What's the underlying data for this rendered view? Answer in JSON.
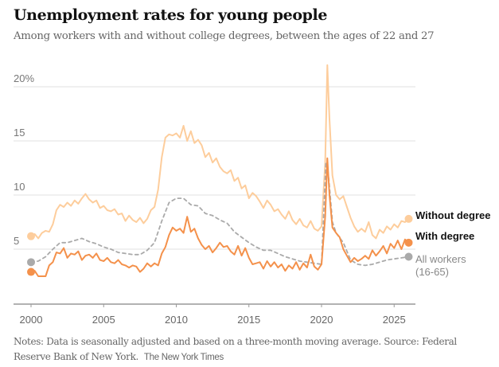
{
  "header": {
    "title": "Unemployment rates for young people",
    "subtitle": "Among workers with and without college degrees, between the ages of 22 and 27"
  },
  "footer": {
    "notes": "Notes: Data is seasonally adjusted and based on a three-month moving average.  Source: Federal Reserve Bank of New York.",
    "credit": "The New York Times"
  },
  "chart_data": {
    "type": "line",
    "title": "Unemployment rates for young people",
    "subtitle": "Among workers with and without college degrees, between the ages of 22 and 27",
    "xlabel": "",
    "ylabel": "",
    "xlim": [
      1999.2,
      2026.8
    ],
    "ylim": [
      0,
      22
    ],
    "grid": true,
    "yticks": [
      {
        "value": 5,
        "label": "5"
      },
      {
        "value": 10,
        "label": "10"
      },
      {
        "value": 15,
        "label": "15"
      },
      {
        "value": 20,
        "label": "20%"
      }
    ],
    "xticks": [
      {
        "value": 2000,
        "label": "2000"
      },
      {
        "value": 2005,
        "label": "2005"
      },
      {
        "value": 2010,
        "label": "2010"
      },
      {
        "value": 2015,
        "label": "2015"
      },
      {
        "value": 2020,
        "label": "2020"
      },
      {
        "value": 2025,
        "label": "2025"
      }
    ],
    "legend_placement": "right-end-labels",
    "series": [
      {
        "name": "Without degree",
        "label_lines": [
          "Without degree"
        ],
        "color": "#fdcd9c",
        "style": "solid",
        "label_bold": true,
        "points": [
          [
            2000.0,
            6.2
          ],
          [
            2000.25,
            6.4
          ],
          [
            2000.5,
            6.0
          ],
          [
            2000.75,
            6.5
          ],
          [
            2001.0,
            6.7
          ],
          [
            2001.25,
            6.6
          ],
          [
            2001.5,
            7.3
          ],
          [
            2001.75,
            8.6
          ],
          [
            2002.0,
            9.1
          ],
          [
            2002.25,
            8.9
          ],
          [
            2002.5,
            9.3
          ],
          [
            2002.75,
            9.0
          ],
          [
            2003.0,
            9.5
          ],
          [
            2003.25,
            9.2
          ],
          [
            2003.5,
            9.7
          ],
          [
            2003.75,
            10.1
          ],
          [
            2004.0,
            9.6
          ],
          [
            2004.25,
            9.3
          ],
          [
            2004.5,
            9.5
          ],
          [
            2004.75,
            8.8
          ],
          [
            2005.0,
            9.0
          ],
          [
            2005.25,
            8.6
          ],
          [
            2005.5,
            8.5
          ],
          [
            2005.75,
            8.7
          ],
          [
            2006.0,
            8.2
          ],
          [
            2006.25,
            8.3
          ],
          [
            2006.5,
            7.6
          ],
          [
            2006.75,
            8.1
          ],
          [
            2007.0,
            7.7
          ],
          [
            2007.25,
            7.5
          ],
          [
            2007.5,
            7.9
          ],
          [
            2007.75,
            7.4
          ],
          [
            2008.0,
            7.8
          ],
          [
            2008.25,
            8.6
          ],
          [
            2008.5,
            8.9
          ],
          [
            2008.75,
            10.5
          ],
          [
            2009.0,
            13.5
          ],
          [
            2009.25,
            15.3
          ],
          [
            2009.5,
            15.6
          ],
          [
            2009.75,
            15.5
          ],
          [
            2010.0,
            15.7
          ],
          [
            2010.25,
            15.3
          ],
          [
            2010.5,
            16.4
          ],
          [
            2010.75,
            15.0
          ],
          [
            2011.0,
            15.9
          ],
          [
            2011.25,
            14.8
          ],
          [
            2011.5,
            15.1
          ],
          [
            2011.75,
            14.6
          ],
          [
            2012.0,
            13.5
          ],
          [
            2012.25,
            13.9
          ],
          [
            2012.5,
            13.0
          ],
          [
            2012.75,
            13.4
          ],
          [
            2013.0,
            12.6
          ],
          [
            2013.25,
            12.2
          ],
          [
            2013.5,
            12.0
          ],
          [
            2013.75,
            12.3
          ],
          [
            2014.0,
            11.3
          ],
          [
            2014.25,
            11.6
          ],
          [
            2014.5,
            10.6
          ],
          [
            2014.75,
            10.9
          ],
          [
            2015.0,
            9.7
          ],
          [
            2015.25,
            10.2
          ],
          [
            2015.5,
            9.9
          ],
          [
            2015.75,
            9.4
          ],
          [
            2016.0,
            8.8
          ],
          [
            2016.25,
            9.5
          ],
          [
            2016.5,
            9.1
          ],
          [
            2016.75,
            8.5
          ],
          [
            2017.0,
            8.7
          ],
          [
            2017.25,
            8.2
          ],
          [
            2017.5,
            7.8
          ],
          [
            2017.75,
            8.5
          ],
          [
            2018.0,
            7.7
          ],
          [
            2018.25,
            7.3
          ],
          [
            2018.5,
            7.8
          ],
          [
            2018.75,
            7.2
          ],
          [
            2019.0,
            7.0
          ],
          [
            2019.25,
            7.6
          ],
          [
            2019.5,
            6.9
          ],
          [
            2019.75,
            6.7
          ],
          [
            2020.0,
            7.1
          ],
          [
            2020.25,
            13.0
          ],
          [
            2020.4,
            22.0
          ],
          [
            2020.55,
            17.0
          ],
          [
            2020.75,
            11.8
          ],
          [
            2021.0,
            10.0
          ],
          [
            2021.25,
            9.6
          ],
          [
            2021.5,
            9.9
          ],
          [
            2021.75,
            8.9
          ],
          [
            2022.0,
            7.9
          ],
          [
            2022.25,
            7.1
          ],
          [
            2022.5,
            6.6
          ],
          [
            2022.75,
            6.9
          ],
          [
            2023.0,
            6.6
          ],
          [
            2023.25,
            7.5
          ],
          [
            2023.5,
            6.3
          ],
          [
            2023.75,
            6.0
          ],
          [
            2024.0,
            6.8
          ],
          [
            2024.25,
            6.5
          ],
          [
            2024.5,
            7.1
          ],
          [
            2024.75,
            6.8
          ],
          [
            2025.0,
            7.3
          ],
          [
            2025.25,
            7.0
          ],
          [
            2025.5,
            7.6
          ],
          [
            2025.75,
            7.5
          ],
          [
            2026.0,
            7.8
          ]
        ]
      },
      {
        "name": "With degree",
        "label_lines": [
          "With degree"
        ],
        "color": "#f4914b",
        "style": "solid",
        "label_bold": true,
        "points": [
          [
            2000.0,
            2.9
          ],
          [
            2000.25,
            3.0
          ],
          [
            2000.5,
            2.5
          ],
          [
            2000.75,
            2.5
          ],
          [
            2001.0,
            2.5
          ],
          [
            2001.25,
            3.5
          ],
          [
            2001.5,
            3.8
          ],
          [
            2001.75,
            4.7
          ],
          [
            2002.0,
            4.6
          ],
          [
            2002.25,
            5.1
          ],
          [
            2002.5,
            4.2
          ],
          [
            2002.75,
            4.6
          ],
          [
            2003.0,
            4.5
          ],
          [
            2003.25,
            4.8
          ],
          [
            2003.5,
            4.0
          ],
          [
            2003.75,
            4.4
          ],
          [
            2004.0,
            4.5
          ],
          [
            2004.25,
            4.2
          ],
          [
            2004.5,
            4.6
          ],
          [
            2004.75,
            4.0
          ],
          [
            2005.0,
            3.9
          ],
          [
            2005.25,
            4.2
          ],
          [
            2005.5,
            3.8
          ],
          [
            2005.75,
            3.7
          ],
          [
            2006.0,
            4.0
          ],
          [
            2006.25,
            3.6
          ],
          [
            2006.5,
            3.5
          ],
          [
            2006.75,
            3.3
          ],
          [
            2007.0,
            3.5
          ],
          [
            2007.25,
            3.4
          ],
          [
            2007.5,
            2.9
          ],
          [
            2007.75,
            3.2
          ],
          [
            2008.0,
            3.7
          ],
          [
            2008.25,
            3.4
          ],
          [
            2008.5,
            3.7
          ],
          [
            2008.75,
            3.5
          ],
          [
            2009.0,
            4.6
          ],
          [
            2009.25,
            5.2
          ],
          [
            2009.5,
            6.3
          ],
          [
            2009.75,
            7.0
          ],
          [
            2010.0,
            6.7
          ],
          [
            2010.25,
            6.9
          ],
          [
            2010.5,
            6.5
          ],
          [
            2010.75,
            8.0
          ],
          [
            2011.0,
            6.6
          ],
          [
            2011.25,
            6.9
          ],
          [
            2011.5,
            6.0
          ],
          [
            2011.75,
            5.4
          ],
          [
            2012.0,
            5.0
          ],
          [
            2012.25,
            5.3
          ],
          [
            2012.5,
            4.7
          ],
          [
            2012.75,
            5.1
          ],
          [
            2013.0,
            5.6
          ],
          [
            2013.25,
            5.2
          ],
          [
            2013.5,
            5.3
          ],
          [
            2013.75,
            4.8
          ],
          [
            2014.0,
            4.5
          ],
          [
            2014.25,
            5.3
          ],
          [
            2014.5,
            4.4
          ],
          [
            2014.75,
            5.1
          ],
          [
            2015.0,
            4.2
          ],
          [
            2015.25,
            3.6
          ],
          [
            2015.5,
            3.7
          ],
          [
            2015.75,
            3.8
          ],
          [
            2016.0,
            3.2
          ],
          [
            2016.25,
            3.9
          ],
          [
            2016.5,
            3.4
          ],
          [
            2016.75,
            3.8
          ],
          [
            2017.0,
            3.3
          ],
          [
            2017.25,
            3.6
          ],
          [
            2017.5,
            3.0
          ],
          [
            2017.75,
            3.5
          ],
          [
            2018.0,
            3.2
          ],
          [
            2018.25,
            3.8
          ],
          [
            2018.5,
            3.1
          ],
          [
            2018.75,
            3.7
          ],
          [
            2019.0,
            3.3
          ],
          [
            2019.25,
            4.5
          ],
          [
            2019.5,
            3.4
          ],
          [
            2019.75,
            3.1
          ],
          [
            2020.0,
            3.6
          ],
          [
            2020.25,
            8.0
          ],
          [
            2020.4,
            13.4
          ],
          [
            2020.55,
            10.0
          ],
          [
            2020.75,
            7.0
          ],
          [
            2021.0,
            6.5
          ],
          [
            2021.25,
            6.1
          ],
          [
            2021.5,
            5.0
          ],
          [
            2021.75,
            4.4
          ],
          [
            2022.0,
            3.8
          ],
          [
            2022.25,
            4.2
          ],
          [
            2022.5,
            3.9
          ],
          [
            2022.75,
            4.1
          ],
          [
            2023.0,
            4.4
          ],
          [
            2023.25,
            4.1
          ],
          [
            2023.5,
            4.9
          ],
          [
            2023.75,
            4.4
          ],
          [
            2024.0,
            4.8
          ],
          [
            2024.25,
            5.3
          ],
          [
            2024.5,
            4.6
          ],
          [
            2024.75,
            5.5
          ],
          [
            2025.0,
            5.1
          ],
          [
            2025.25,
            5.8
          ],
          [
            2025.5,
            5.0
          ],
          [
            2025.75,
            5.9
          ],
          [
            2026.0,
            5.6
          ]
        ]
      },
      {
        "name": "All workers (16-65)",
        "label_lines": [
          "All workers",
          "(16-65)"
        ],
        "color": "#aaaaaa",
        "style": "dashed",
        "label_bold": false,
        "points": [
          [
            2000.0,
            3.8
          ],
          [
            2000.5,
            3.9
          ],
          [
            2001.0,
            4.3
          ],
          [
            2001.5,
            5.0
          ],
          [
            2002.0,
            5.6
          ],
          [
            2002.5,
            5.6
          ],
          [
            2003.0,
            5.8
          ],
          [
            2003.5,
            6.0
          ],
          [
            2004.0,
            5.7
          ],
          [
            2004.5,
            5.5
          ],
          [
            2005.0,
            5.2
          ],
          [
            2005.5,
            5.0
          ],
          [
            2006.0,
            4.7
          ],
          [
            2006.5,
            4.6
          ],
          [
            2007.0,
            4.5
          ],
          [
            2007.5,
            4.5
          ],
          [
            2008.0,
            4.9
          ],
          [
            2008.5,
            5.6
          ],
          [
            2009.0,
            7.6
          ],
          [
            2009.5,
            9.3
          ],
          [
            2010.0,
            9.7
          ],
          [
            2010.5,
            9.7
          ],
          [
            2011.0,
            9.1
          ],
          [
            2011.5,
            9.0
          ],
          [
            2012.0,
            8.3
          ],
          [
            2012.5,
            8.1
          ],
          [
            2013.0,
            7.7
          ],
          [
            2013.5,
            7.4
          ],
          [
            2014.0,
            6.6
          ],
          [
            2014.5,
            6.1
          ],
          [
            2015.0,
            5.6
          ],
          [
            2015.5,
            5.2
          ],
          [
            2016.0,
            4.9
          ],
          [
            2016.5,
            4.9
          ],
          [
            2017.0,
            4.6
          ],
          [
            2017.5,
            4.3
          ],
          [
            2018.0,
            4.1
          ],
          [
            2018.5,
            3.9
          ],
          [
            2019.0,
            3.8
          ],
          [
            2019.5,
            3.7
          ],
          [
            2020.0,
            3.6
          ],
          [
            2020.3,
            13.0
          ],
          [
            2020.5,
            11.5
          ],
          [
            2020.75,
            7.5
          ],
          [
            2021.0,
            6.5
          ],
          [
            2021.5,
            5.6
          ],
          [
            2022.0,
            4.0
          ],
          [
            2022.5,
            3.6
          ],
          [
            2023.0,
            3.5
          ],
          [
            2023.5,
            3.6
          ],
          [
            2024.0,
            3.8
          ],
          [
            2024.5,
            4.0
          ],
          [
            2025.0,
            4.1
          ],
          [
            2025.5,
            4.2
          ],
          [
            2026.0,
            4.3
          ]
        ]
      }
    ]
  }
}
